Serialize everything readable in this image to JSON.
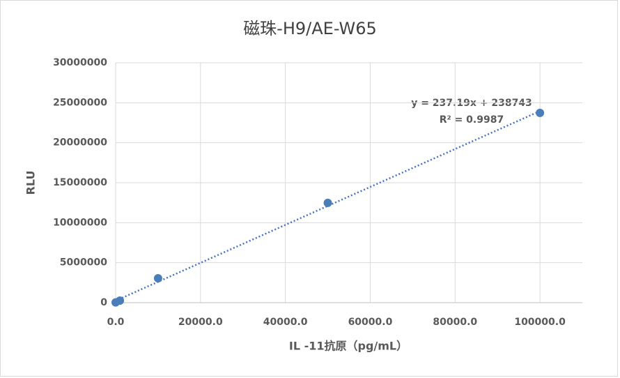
{
  "chart_data": {
    "type": "scatter",
    "title": "磁珠-H9/AE-W65",
    "x_label": "IL -11抗原（pg/mL）",
    "y_label": "RLU",
    "series": [
      {
        "name": "RLU",
        "color": "#4a7ebb",
        "x": [
          0,
          1000,
          10000,
          50000,
          100000
        ],
        "values": [
          30000,
          260000,
          3050000,
          12480000,
          23730000
        ]
      }
    ],
    "trendline": {
      "color": "#4472c4",
      "slope": 237.19,
      "intercept": 238743,
      "equation": "y = 237.19x + 238743",
      "r_squared": "R² = 0.9987"
    },
    "xlim": [
      0,
      110000
    ],
    "xticks": [
      {
        "value": 0,
        "label": "0.0"
      },
      {
        "value": 20000,
        "label": "20000.0"
      },
      {
        "value": 40000,
        "label": "40000.0"
      },
      {
        "value": 60000,
        "label": "60000.0"
      },
      {
        "value": 80000,
        "label": "80000.0"
      },
      {
        "value": 100000,
        "label": "100000.0"
      }
    ],
    "ylim": [
      0,
      30000000
    ],
    "yticks": [
      0,
      5000000,
      10000000,
      15000000,
      20000000,
      25000000,
      30000000
    ],
    "grid": true
  }
}
